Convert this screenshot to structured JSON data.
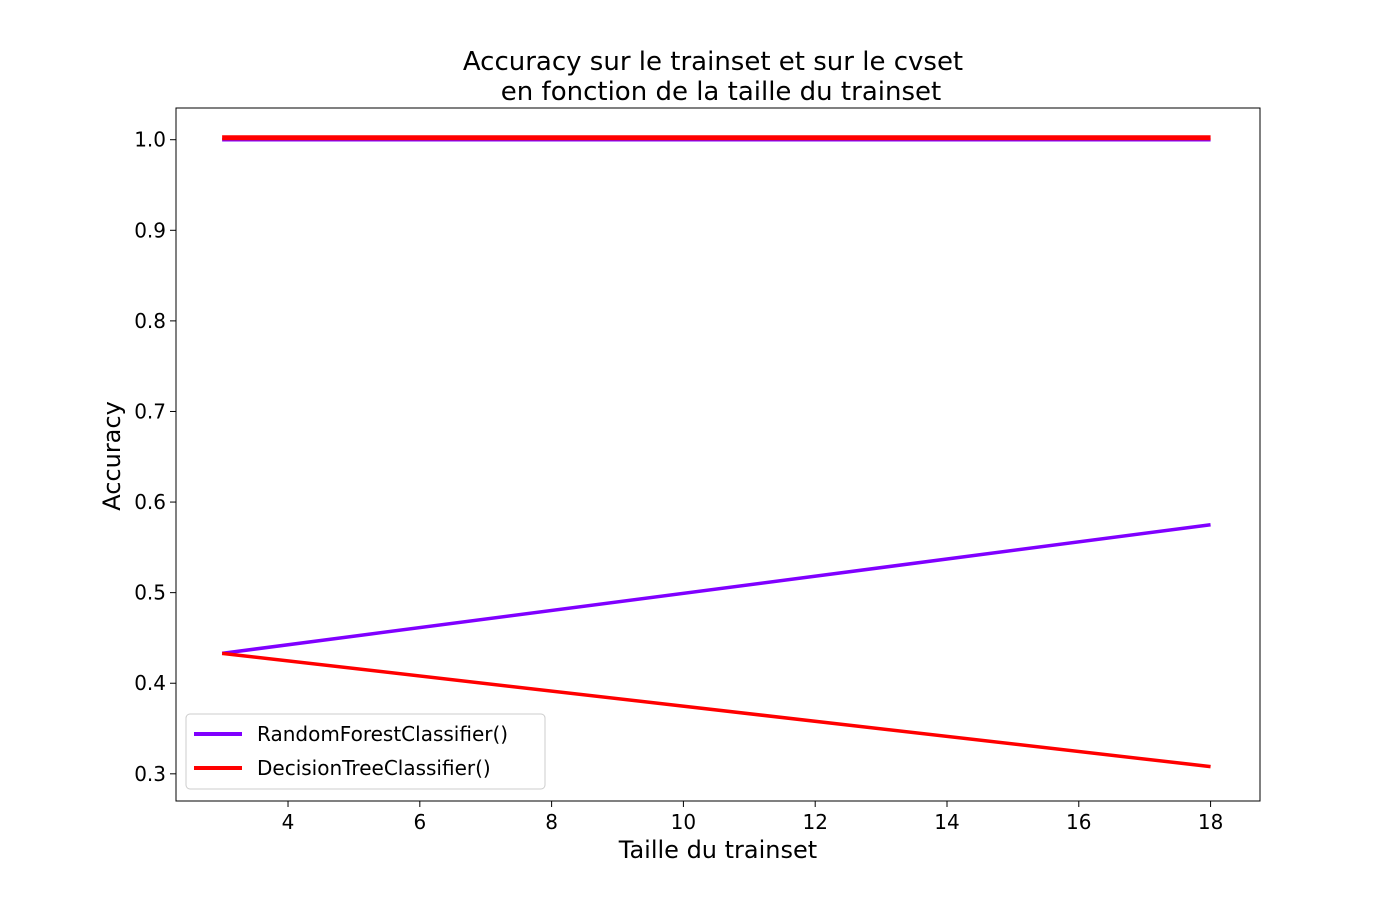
{
  "chart_data": {
    "type": "line",
    "title": [
      "Accuracy sur le trainset et sur le cvset",
      "en fonction de la taille du trainset"
    ],
    "xlabel": "Taille du trainset",
    "ylabel": "Accuracy",
    "xlim": [
      2.3,
      18.75
    ],
    "ylim": [
      0.27,
      1.035
    ],
    "xticks": [
      4,
      6,
      8,
      10,
      12,
      14,
      16,
      18
    ],
    "yticks": [
      0.3,
      0.4,
      0.5,
      0.6,
      0.7,
      0.8,
      0.9,
      1.0
    ],
    "grid": false,
    "legend_position": "lower-left",
    "legend": [
      "RandomForestClassifier()",
      "DecisionTreeClassifier()"
    ],
    "series": [
      {
        "name": "RandomForestClassifier()",
        "role": "train",
        "color": "#8000ff",
        "x": [
          3,
          18
        ],
        "y": [
          1.0,
          1.0
        ]
      },
      {
        "name": "DecisionTreeClassifier()",
        "role": "train",
        "color": "#ff0000",
        "x": [
          3,
          18
        ],
        "y": [
          1.0,
          1.0
        ]
      },
      {
        "name": "RandomForestClassifier()",
        "role": "cv",
        "color": "#8000ff",
        "x": [
          3,
          18
        ],
        "y": [
          0.433,
          0.575
        ]
      },
      {
        "name": "DecisionTreeClassifier()",
        "role": "cv",
        "color": "#ff0000",
        "x": [
          3,
          18
        ],
        "y": [
          0.433,
          0.308
        ]
      }
    ]
  }
}
